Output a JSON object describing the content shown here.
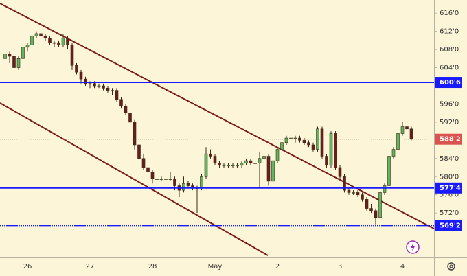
{
  "chart_data": {
    "type": "candlestick",
    "categories": [
      null,
      null,
      null,
      null,
      null,
      "26",
      null,
      null,
      null,
      null,
      null,
      null,
      null,
      null,
      null,
      null,
      null,
      null,
      null,
      "27",
      null,
      null,
      null,
      null,
      null,
      null,
      null,
      null,
      null,
      null,
      null,
      null,
      null,
      "28",
      null,
      null,
      null,
      null,
      null,
      null,
      null,
      null,
      null,
      null,
      null,
      null,
      null,
      "May",
      null,
      null,
      null,
      null,
      null,
      null,
      null,
      null,
      null,
      null,
      null,
      null,
      null,
      "2",
      null,
      null,
      null,
      null,
      null,
      null,
      null,
      null,
      null,
      null,
      null,
      null,
      null,
      "3",
      null,
      null,
      null,
      null,
      null,
      null,
      null,
      null,
      null,
      null,
      null,
      null,
      null,
      "4",
      null,
      null
    ],
    "candles": [
      [
        606,
        608,
        605.5,
        607
      ],
      [
        607,
        607.5,
        605,
        606.5
      ],
      [
        606.5,
        607,
        601,
        604
      ],
      [
        604,
        606.5,
        603.5,
        606
      ],
      [
        606,
        609,
        605.5,
        608.5
      ],
      [
        608.5,
        609.5,
        607.5,
        609
      ],
      [
        609,
        611.5,
        608.5,
        611
      ],
      [
        611,
        612,
        610.5,
        611.5
      ],
      [
        611.5,
        612,
        610.5,
        611
      ],
      [
        611,
        611.5,
        610,
        610.5
      ],
      [
        610.5,
        611,
        609,
        609.5
      ],
      [
        609.5,
        610,
        608.5,
        609.5
      ],
      [
        609.5,
        610,
        608.5,
        609
      ],
      [
        609,
        611.5,
        608.5,
        610.5
      ],
      [
        610.5,
        611,
        608,
        609
      ],
      [
        609,
        609.5,
        603.5,
        604.5
      ],
      [
        604.5,
        605,
        602.5,
        603
      ],
      [
        603,
        603.5,
        600.5,
        601.5
      ],
      [
        601.5,
        602,
        600,
        600.5
      ],
      [
        600.5,
        601,
        599.5,
        600.5
      ],
      [
        600.5,
        601,
        599.5,
        600
      ],
      [
        600,
        600.5,
        599.5,
        600
      ],
      [
        600,
        600.5,
        599,
        599.5
      ],
      [
        599.5,
        600,
        598.5,
        599
      ],
      [
        599,
        599.5,
        598,
        599
      ],
      [
        599,
        599.5,
        596.5,
        597
      ],
      [
        597,
        597.5,
        595,
        595.5
      ],
      [
        595.5,
        596,
        593.5,
        594
      ],
      [
        594,
        594.5,
        591.5,
        592
      ],
      [
        592,
        592.5,
        586,
        587
      ],
      [
        587,
        587.5,
        583.5,
        584
      ],
      [
        584,
        585,
        581.5,
        582
      ],
      [
        582,
        583,
        580.5,
        581
      ],
      [
        581,
        581.5,
        578.5,
        579.5
      ],
      [
        579.5,
        580.5,
        579,
        579.5
      ],
      [
        579.5,
        580,
        579,
        579.5
      ],
      [
        579.5,
        580,
        578.5,
        579.5
      ],
      [
        579.5,
        581,
        579,
        579.5
      ],
      [
        579.5,
        580,
        577,
        578
      ],
      [
        578,
        578.5,
        575.5,
        577
      ],
      [
        577,
        580,
        576.5,
        578.5
      ],
      [
        578.5,
        579,
        577.5,
        578
      ],
      [
        578,
        578.5,
        577,
        577.5
      ],
      [
        577.5,
        578,
        572,
        577.5
      ],
      [
        577.5,
        580.5,
        577,
        580
      ],
      [
        580,
        586.5,
        579.5,
        585
      ],
      [
        585,
        586,
        584,
        584.5
      ],
      [
        584.5,
        585,
        582.5,
        583
      ],
      [
        583,
        583.5,
        582,
        582.5
      ],
      [
        582.5,
        583,
        582,
        582.5
      ],
      [
        582.5,
        583,
        582,
        582.5
      ],
      [
        582.5,
        583,
        582,
        582.5
      ],
      [
        582.5,
        583,
        582,
        582.5
      ],
      [
        582.5,
        583.5,
        582,
        583
      ],
      [
        583,
        584,
        582.5,
        583.5
      ],
      [
        583.5,
        584,
        582.5,
        583
      ],
      [
        583,
        584,
        582.5,
        583
      ],
      [
        583,
        585.5,
        577.5,
        584
      ],
      [
        584,
        586.5,
        583.5,
        584.5
      ],
      [
        584.5,
        585,
        578,
        579
      ],
      [
        579,
        584,
        578.5,
        583.5
      ],
      [
        583.5,
        586.5,
        583,
        586
      ],
      [
        586,
        588,
        585.5,
        587.5
      ],
      [
        587.5,
        589,
        587,
        588.5
      ],
      [
        588.5,
        589.5,
        588,
        588.5
      ],
      [
        588.5,
        589,
        587.5,
        588.5
      ],
      [
        588.5,
        589,
        587.5,
        588
      ],
      [
        588,
        588.5,
        587,
        587.5
      ],
      [
        587.5,
        588,
        586.5,
        587
      ],
      [
        587,
        587.5,
        585.5,
        586
      ],
      [
        586,
        591,
        585.5,
        590.5
      ],
      [
        590.5,
        591,
        584,
        584.5
      ],
      [
        584.5,
        585,
        582,
        582.5
      ],
      [
        582.5,
        590,
        582,
        589.5
      ],
      [
        589.5,
        590,
        581.5,
        582
      ],
      [
        582,
        582.5,
        579.5,
        580
      ],
      [
        580,
        580.5,
        576.5,
        577
      ],
      [
        577,
        577.5,
        576,
        576.5
      ],
      [
        576.5,
        577,
        576,
        576.5
      ],
      [
        576.5,
        577,
        575.5,
        576
      ],
      [
        576,
        576.5,
        574.5,
        575
      ],
      [
        575,
        575.5,
        572.5,
        573
      ],
      [
        573,
        574,
        572,
        572.5
      ],
      [
        572.5,
        573,
        569.5,
        571
      ],
      [
        571,
        577,
        570.5,
        576.5
      ],
      [
        576.5,
        578.5,
        576,
        578
      ],
      [
        578,
        585,
        577.5,
        584.5
      ],
      [
        584.5,
        586.5,
        584,
        586
      ],
      [
        586,
        590,
        585.5,
        589.5
      ],
      [
        589.5,
        592,
        589,
        591
      ],
      [
        591,
        592,
        590,
        590.5
      ],
      [
        590.5,
        591,
        588,
        588.25
      ]
    ],
    "up_color": "#5cb85c",
    "down_color": "#6b1c1c",
    "ylim": [
      562.2,
      618.9
    ],
    "yticks": [
      {
        "value": 616,
        "label": "616'0"
      },
      {
        "value": 612,
        "label": "612'0"
      },
      {
        "value": 608,
        "label": "608'0"
      },
      {
        "value": 604,
        "label": "604'0"
      },
      {
        "value": 596,
        "label": "596'0"
      },
      {
        "value": 592,
        "label": "592'0"
      },
      {
        "value": 584,
        "label": "584'0"
      },
      {
        "value": 580,
        "label": "580'0"
      },
      {
        "value": 576,
        "label": "576'0"
      },
      {
        "value": 572,
        "label": "572'0"
      }
    ],
    "levels": [
      {
        "value": 600.75,
        "label": "600'6",
        "color": "#1a1aff",
        "style": "solid"
      },
      {
        "value": 577.5,
        "label": "577'4",
        "color": "#1a1aff",
        "style": "solid"
      },
      {
        "value": 569.25,
        "label": "569'2",
        "color": "#1a1aff",
        "style": "dotted"
      }
    ],
    "last_price": {
      "value": 588.25,
      "label": "588'2",
      "color": "#d9534f"
    }
  }
}
